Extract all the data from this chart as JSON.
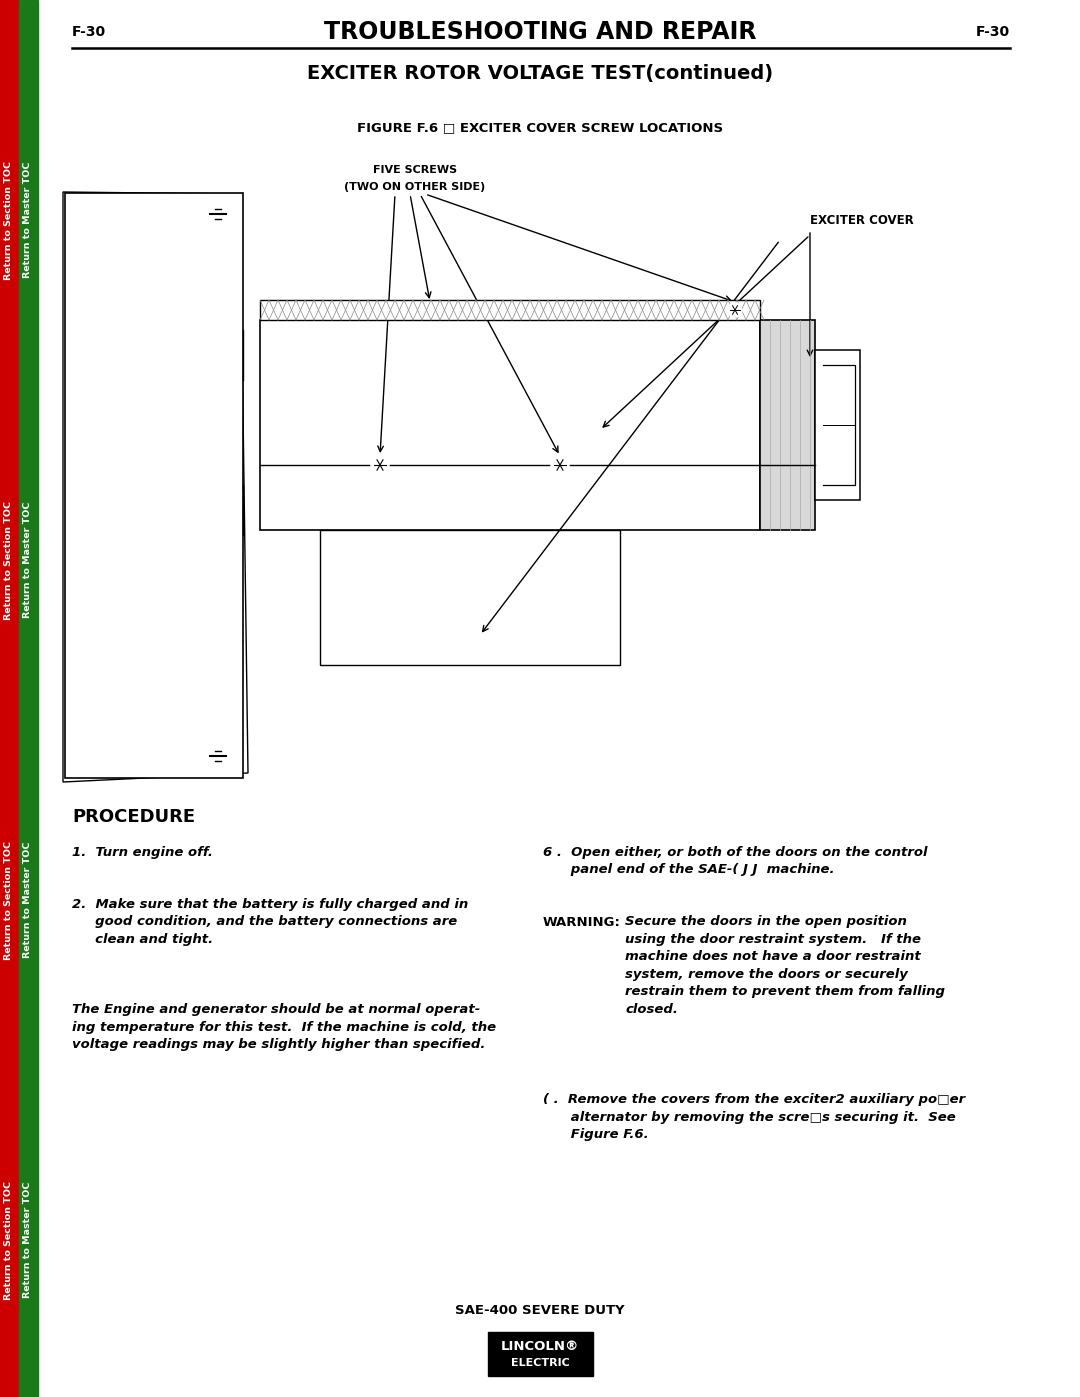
{
  "page_label_left": "F-30",
  "page_label_right": "F-30",
  "header_title": "TROUBLESHOOTING AND REPAIR",
  "subheader_title": "EXCITER ROTOR VOLTAGE TEST(continued)",
  "figure_caption": "FIGURE F.6 □ EXCITER COVER SCREW LOCATIONS",
  "label_five_screws_1": "FIVE SCREWS",
  "label_five_screws_2": "(TWO ON OTHER SIDE)",
  "label_exciter_cover": "EXCITER COVER",
  "procedure_title": "PROCEDURE",
  "step1": "1.  Turn engine off.",
  "step2_line1": "2.  Make sure that the battery is fully charged and in",
  "step2_line2": "     good condition, and the battery connections are",
  "step2_line3": "     clean and tight.",
  "italic_line1": "The Engine and generator should be at normal operat-",
  "italic_line2": "ing temperature for this test.  If the machine is cold, the",
  "italic_line3": "voltage readings may be slightly higher than specified.",
  "step6_line1": "6 .  Open either, or both of the doors on the control",
  "step6_line2": "      panel end of the SAE-( J J  machine.",
  "warning_label": "WARNING:",
  "warning_line1": "Secure the doors in the open position",
  "warning_line2": "using the door restraint system.   If the",
  "warning_line3": "machine does not have a door restraint",
  "warning_line4": "system, remove the doors or securely",
  "warning_line5": "restrain them to prevent them from falling",
  "warning_line6": "closed.",
  "step7_line1": "( .  Remove the covers from the exciter2 auxiliary po□er",
  "step7_line2": "      alternator by removing the scre□s securing it.  See",
  "step7_line3": "      Figure F.6.",
  "footer_model": "SAE-400 SEVERE DUTY",
  "bg_color": "#ffffff",
  "sidebar_red": "#cc0000",
  "sidebar_green": "#1a7a1a",
  "black": "#000000",
  "gray_light": "#d8d8d8",
  "gray_medium": "#aaaaaa",
  "hatch_color": "#888888"
}
